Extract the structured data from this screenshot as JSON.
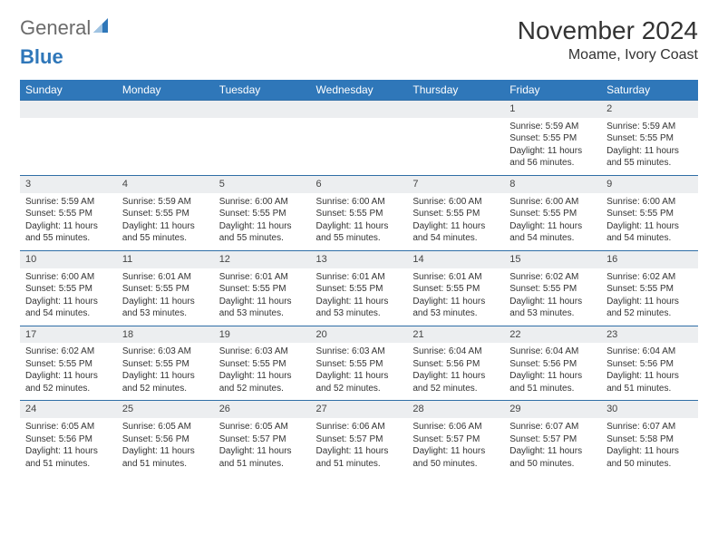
{
  "brand": {
    "part1": "General",
    "part2": "Blue"
  },
  "title": {
    "month": "November 2024",
    "location": "Moame, Ivory Coast"
  },
  "style": {
    "header_bg": "#2f77b9",
    "header_text": "#ffffff",
    "daynum_bg": "#eceef0",
    "row_border": "#2f6ea6",
    "body_text": "#333333",
    "page_bg": "#ffffff",
    "header_fontsize": 12,
    "cell_fontsize": 10,
    "title_fontsize": 28,
    "loc_fontsize": 16,
    "cols": 7,
    "rows": 5
  },
  "weekdays": [
    "Sunday",
    "Monday",
    "Tuesday",
    "Wednesday",
    "Thursday",
    "Friday",
    "Saturday"
  ],
  "weeks": [
    [
      {
        "n": "",
        "sr": "",
        "ss": "",
        "dl": ""
      },
      {
        "n": "",
        "sr": "",
        "ss": "",
        "dl": ""
      },
      {
        "n": "",
        "sr": "",
        "ss": "",
        "dl": ""
      },
      {
        "n": "",
        "sr": "",
        "ss": "",
        "dl": ""
      },
      {
        "n": "",
        "sr": "",
        "ss": "",
        "dl": ""
      },
      {
        "n": "1",
        "sr": "5:59 AM",
        "ss": "5:55 PM",
        "dl": "11 hours and 56 minutes."
      },
      {
        "n": "2",
        "sr": "5:59 AM",
        "ss": "5:55 PM",
        "dl": "11 hours and 55 minutes."
      }
    ],
    [
      {
        "n": "3",
        "sr": "5:59 AM",
        "ss": "5:55 PM",
        "dl": "11 hours and 55 minutes."
      },
      {
        "n": "4",
        "sr": "5:59 AM",
        "ss": "5:55 PM",
        "dl": "11 hours and 55 minutes."
      },
      {
        "n": "5",
        "sr": "6:00 AM",
        "ss": "5:55 PM",
        "dl": "11 hours and 55 minutes."
      },
      {
        "n": "6",
        "sr": "6:00 AM",
        "ss": "5:55 PM",
        "dl": "11 hours and 55 minutes."
      },
      {
        "n": "7",
        "sr": "6:00 AM",
        "ss": "5:55 PM",
        "dl": "11 hours and 54 minutes."
      },
      {
        "n": "8",
        "sr": "6:00 AM",
        "ss": "5:55 PM",
        "dl": "11 hours and 54 minutes."
      },
      {
        "n": "9",
        "sr": "6:00 AM",
        "ss": "5:55 PM",
        "dl": "11 hours and 54 minutes."
      }
    ],
    [
      {
        "n": "10",
        "sr": "6:00 AM",
        "ss": "5:55 PM",
        "dl": "11 hours and 54 minutes."
      },
      {
        "n": "11",
        "sr": "6:01 AM",
        "ss": "5:55 PM",
        "dl": "11 hours and 53 minutes."
      },
      {
        "n": "12",
        "sr": "6:01 AM",
        "ss": "5:55 PM",
        "dl": "11 hours and 53 minutes."
      },
      {
        "n": "13",
        "sr": "6:01 AM",
        "ss": "5:55 PM",
        "dl": "11 hours and 53 minutes."
      },
      {
        "n": "14",
        "sr": "6:01 AM",
        "ss": "5:55 PM",
        "dl": "11 hours and 53 minutes."
      },
      {
        "n": "15",
        "sr": "6:02 AM",
        "ss": "5:55 PM",
        "dl": "11 hours and 53 minutes."
      },
      {
        "n": "16",
        "sr": "6:02 AM",
        "ss": "5:55 PM",
        "dl": "11 hours and 52 minutes."
      }
    ],
    [
      {
        "n": "17",
        "sr": "6:02 AM",
        "ss": "5:55 PM",
        "dl": "11 hours and 52 minutes."
      },
      {
        "n": "18",
        "sr": "6:03 AM",
        "ss": "5:55 PM",
        "dl": "11 hours and 52 minutes."
      },
      {
        "n": "19",
        "sr": "6:03 AM",
        "ss": "5:55 PM",
        "dl": "11 hours and 52 minutes."
      },
      {
        "n": "20",
        "sr": "6:03 AM",
        "ss": "5:55 PM",
        "dl": "11 hours and 52 minutes."
      },
      {
        "n": "21",
        "sr": "6:04 AM",
        "ss": "5:56 PM",
        "dl": "11 hours and 52 minutes."
      },
      {
        "n": "22",
        "sr": "6:04 AM",
        "ss": "5:56 PM",
        "dl": "11 hours and 51 minutes."
      },
      {
        "n": "23",
        "sr": "6:04 AM",
        "ss": "5:56 PM",
        "dl": "11 hours and 51 minutes."
      }
    ],
    [
      {
        "n": "24",
        "sr": "6:05 AM",
        "ss": "5:56 PM",
        "dl": "11 hours and 51 minutes."
      },
      {
        "n": "25",
        "sr": "6:05 AM",
        "ss": "5:56 PM",
        "dl": "11 hours and 51 minutes."
      },
      {
        "n": "26",
        "sr": "6:05 AM",
        "ss": "5:57 PM",
        "dl": "11 hours and 51 minutes."
      },
      {
        "n": "27",
        "sr": "6:06 AM",
        "ss": "5:57 PM",
        "dl": "11 hours and 51 minutes."
      },
      {
        "n": "28",
        "sr": "6:06 AM",
        "ss": "5:57 PM",
        "dl": "11 hours and 50 minutes."
      },
      {
        "n": "29",
        "sr": "6:07 AM",
        "ss": "5:57 PM",
        "dl": "11 hours and 50 minutes."
      },
      {
        "n": "30",
        "sr": "6:07 AM",
        "ss": "5:58 PM",
        "dl": "11 hours and 50 minutes."
      }
    ]
  ],
  "labels": {
    "sunrise": "Sunrise:",
    "sunset": "Sunset:",
    "daylight": "Daylight:"
  }
}
